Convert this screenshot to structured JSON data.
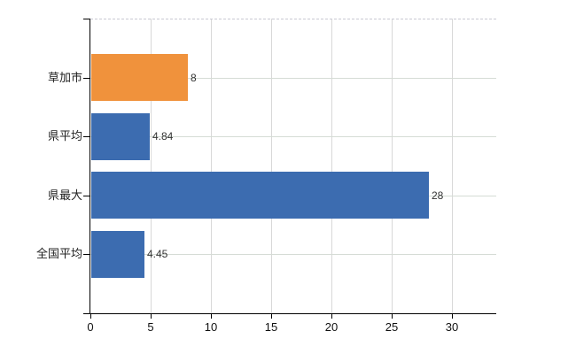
{
  "chart_data": {
    "type": "bar",
    "orientation": "horizontal",
    "title": "",
    "xlabel": "",
    "ylabel": "",
    "categories": [
      "草加市",
      "県平均",
      "県最大",
      "全国平均"
    ],
    "values": [
      8,
      4.84,
      28,
      4.45
    ],
    "value_labels": [
      "8",
      "4.84",
      "28",
      "4.45"
    ],
    "bar_colors": [
      "#f0923c",
      "#3c6cb0",
      "#3c6cb0",
      "#3c6cb0"
    ],
    "xlim": [
      0,
      33.7
    ],
    "xticks": [
      0,
      5,
      10,
      15,
      20,
      25,
      30
    ],
    "xtick_labels": [
      "0",
      "5",
      "10",
      "15",
      "20",
      "25",
      "30"
    ],
    "grid": true,
    "legend": false
  },
  "colors": {
    "background": "#ffffff",
    "axis": "#000000",
    "grid_vertical": "#d8d8d8",
    "grid_horizontal": "#d5dcd5",
    "dashed_border": "#c9c9d2",
    "text": "#222222",
    "bar_blue": "#3c6cb0",
    "bar_orange": "#f0923c"
  }
}
